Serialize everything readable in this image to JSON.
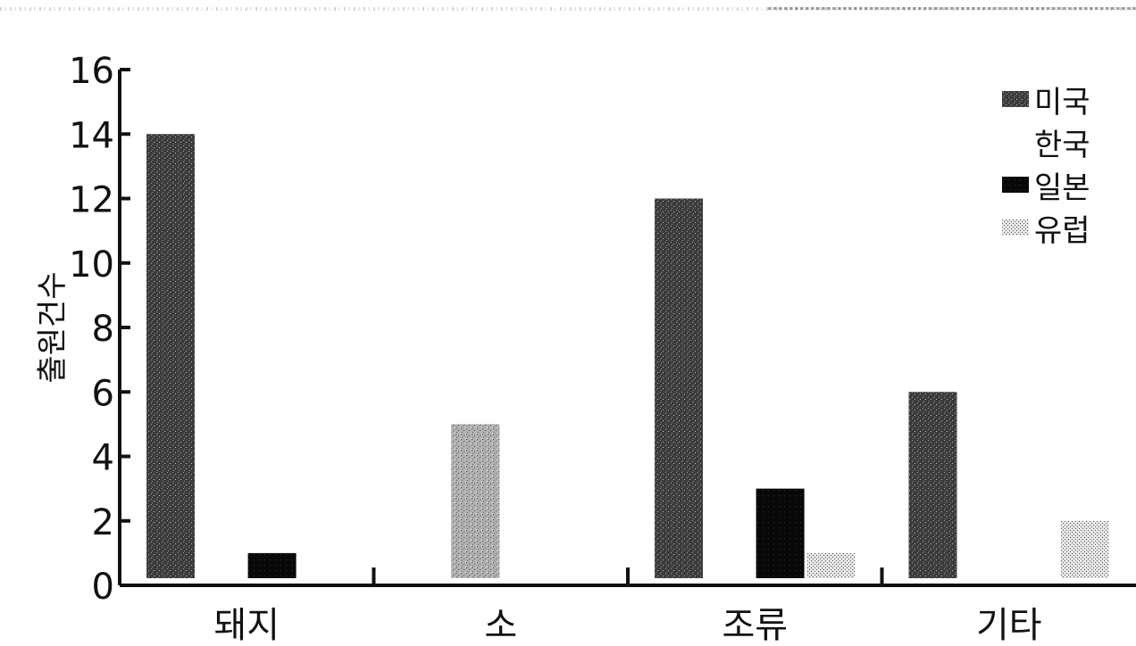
{
  "chart_data": {
    "type": "bar",
    "title": "",
    "xlabel": "",
    "ylabel": "출원건수",
    "ylim": [
      0,
      16
    ],
    "yticks": [
      0,
      2,
      4,
      6,
      8,
      10,
      12,
      14,
      16
    ],
    "categories": [
      "돼지",
      "소",
      "조류",
      "기타"
    ],
    "series": [
      {
        "name": "미국",
        "values": [
          14,
          0,
          12,
          6
        ]
      },
      {
        "name": "한국",
        "values": [
          0,
          5,
          0,
          0
        ]
      },
      {
        "name": "일본",
        "values": [
          1,
          0,
          3,
          0
        ]
      },
      {
        "name": "유럽",
        "values": [
          0,
          0,
          1,
          2
        ]
      }
    ],
    "legend": {
      "position": "top-right",
      "items": [
        "미국",
        "한국",
        "일본",
        "유럽"
      ]
    },
    "grid": false
  },
  "colors": {
    "axis": "#111111",
    "미국": "#4a4a4a",
    "한국": "#9c9c9c",
    "일본": "#0a0a0a",
    "유럽": "#b8b8b8"
  }
}
